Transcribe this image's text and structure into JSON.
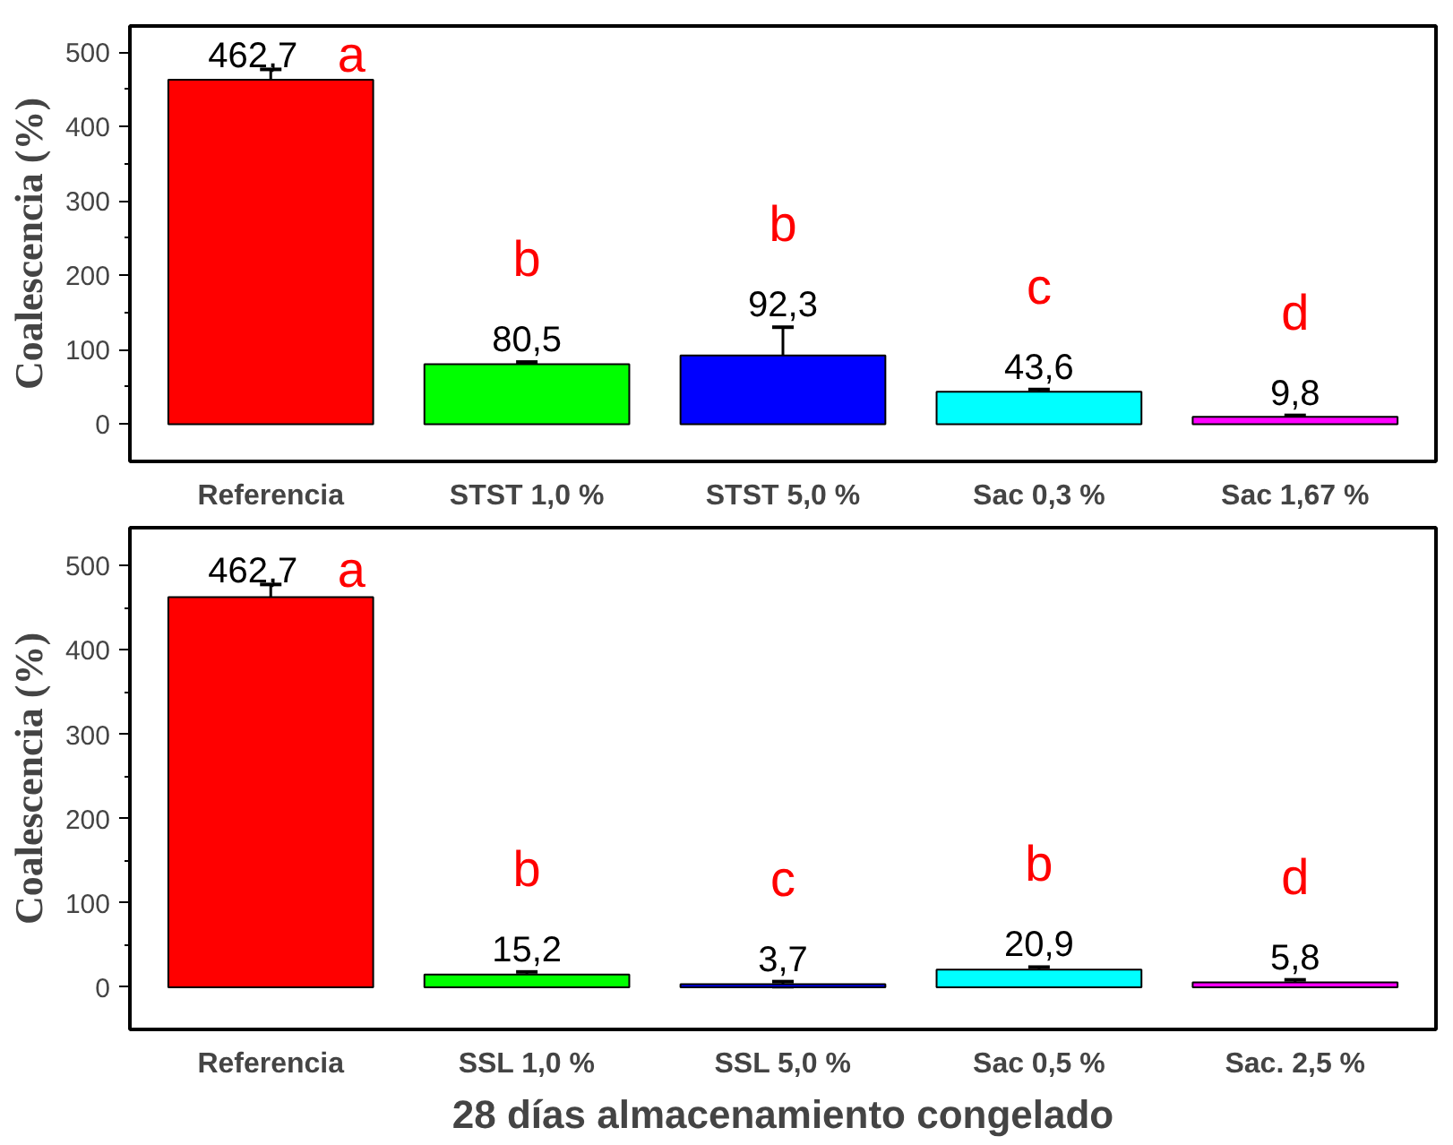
{
  "chart_data": [
    {
      "type": "bar",
      "ylabel": "Coalescencia (%)",
      "categories": [
        "Referencia",
        "STST 1,0 %",
        "STST 5,0 %",
        "Sac 0,3 %",
        "Sac 1,67 %"
      ],
      "values": [
        462.7,
        80.5,
        92.3,
        43.6,
        9.8
      ],
      "colors": [
        "#ff0000",
        "#00ff00",
        "#0000ff",
        "#00ffff",
        "#ff00ff"
      ],
      "errors": [
        14,
        3,
        38,
        3,
        2
      ],
      "value_labels": [
        "462,7",
        "80,5",
        "92,3",
        "43,6",
        "9,8"
      ],
      "ylim": [
        -50,
        535
      ],
      "yticks": [
        0,
        100,
        200,
        300,
        400,
        500
      ],
      "grid": false,
      "annotations": [
        "a",
        "b",
        "b",
        "c",
        "d"
      ]
    },
    {
      "type": "bar",
      "ylabel": "Coalescencia (%)",
      "xlabel": "28 días almacenamiento congelado",
      "categories": [
        "Referencia",
        "SSL 1,0 %",
        "SSL 5,0 %",
        "Sac 0,5 %",
        "Sac. 2,5 %"
      ],
      "values": [
        462.7,
        15.2,
        3.7,
        20.9,
        5.8
      ],
      "colors": [
        "#ff0000",
        "#00ff00",
        "#0000ff",
        "#00ffff",
        "#ff00ff"
      ],
      "errors": [
        15,
        3,
        3,
        3,
        3
      ],
      "value_labels": [
        "462,7",
        "15,2",
        "3,7",
        "20,9",
        "5,8"
      ],
      "ylim": [
        -50,
        545
      ],
      "yticks": [
        0,
        100,
        200,
        300,
        400,
        500
      ],
      "grid": false,
      "annotations": [
        "a",
        "b",
        "c",
        "b",
        "d"
      ]
    }
  ]
}
